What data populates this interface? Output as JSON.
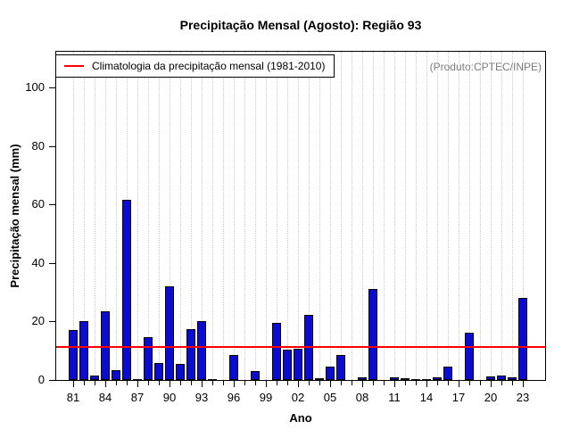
{
  "title": "Precipitação Mensal (Agosto): Região 93",
  "watermark": "(Produto:CPTEC/INPE)",
  "legend": {
    "label": "Climatologia da precipitação mensal (1981-2010)"
  },
  "axes": {
    "x_label": "Ano",
    "y_label": "Precipitação mensal (mm)"
  },
  "chart_data": {
    "type": "bar",
    "title": "Precipitação Mensal (Agosto): Região 93",
    "xlabel": "Ano",
    "ylabel": "Precipitação mensal (mm)",
    "ylim": [
      0,
      112
    ],
    "yticks": [
      0,
      20,
      40,
      60,
      80,
      100
    ],
    "grid": "vertical-dotted",
    "legend_position": "top-left-inside",
    "legend_entries": [
      {
        "label": "Climatologia da precipitação mensal (1981-2010)",
        "type": "line",
        "color": "#ff0000"
      }
    ],
    "annotation": "(Produto:CPTEC/INPE)",
    "climatology_mm": 11.4,
    "bar_color": "#0c0cce",
    "line_color": "#ff0000",
    "categories": [
      "81",
      "82",
      "83",
      "84",
      "85",
      "86",
      "87",
      "88",
      "89",
      "90",
      "91",
      "92",
      "93",
      "94",
      "95",
      "96",
      "97",
      "98",
      "99",
      "00",
      "01",
      "02",
      "03",
      "04",
      "05",
      "06",
      "07",
      "08",
      "09",
      "10",
      "11",
      "12",
      "13",
      "14",
      "15",
      "16",
      "17",
      "18",
      "19",
      "20",
      "21",
      "22",
      "23"
    ],
    "labeled_ticks": [
      "81",
      "84",
      "87",
      "90",
      "93",
      "96",
      "99",
      "02",
      "05",
      "08",
      "11",
      "14",
      "17",
      "20",
      "23"
    ],
    "values": [
      17,
      20,
      1.6,
      23.5,
      3.5,
      61.5,
      0.3,
      14.8,
      5.7,
      32,
      5.4,
      17.3,
      20,
      0.3,
      0,
      8.4,
      0,
      3,
      0,
      19.5,
      10.5,
      10.8,
      22.3,
      0.5,
      4.5,
      8.5,
      0,
      0.8,
      31,
      0,
      1,
      0.6,
      0.3,
      0.3,
      0.8,
      4.5,
      0,
      16.3,
      0,
      1.1,
      1.5,
      0.9,
      28
    ]
  }
}
